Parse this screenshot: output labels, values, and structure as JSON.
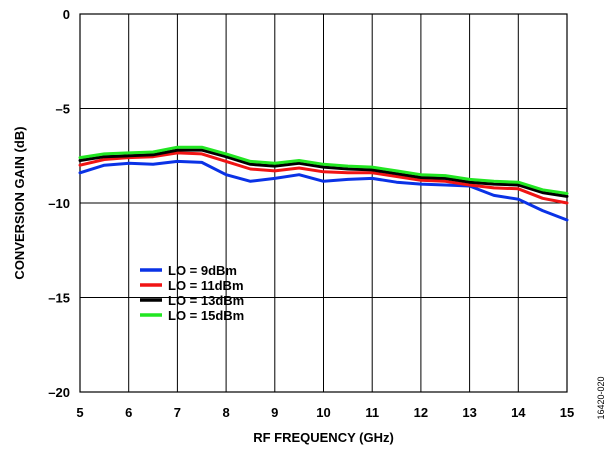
{
  "figure_id": "16420-020",
  "chart_data": {
    "type": "line",
    "xlabel": "RF FREQUENCY (GHz)",
    "ylabel": "CONVERSION GAIN (dB)",
    "xlim": [
      5,
      15
    ],
    "ylim": [
      -20,
      0
    ],
    "x_ticks": [
      5,
      6,
      7,
      8,
      9,
      10,
      11,
      12,
      13,
      14,
      15
    ],
    "y_ticks": [
      0,
      -5,
      -10,
      -15,
      -20
    ],
    "x_tick_labels": [
      "5",
      "6",
      "7",
      "8",
      "9",
      "10",
      "11",
      "12",
      "13",
      "14",
      "15"
    ],
    "y_tick_labels": [
      "0",
      "–5",
      "–10",
      "–15",
      "–20"
    ],
    "grid": true,
    "legend_position": "lower-left",
    "x": [
      5.0,
      5.5,
      6.0,
      6.5,
      7.0,
      7.5,
      8.0,
      8.5,
      9.0,
      9.5,
      10.0,
      10.5,
      11.0,
      11.5,
      12.0,
      12.5,
      13.0,
      13.5,
      14.0,
      14.5,
      15.0
    ],
    "series": [
      {
        "name": "LO = 9dBm",
        "color": "#0a32e6",
        "values": [
          -8.4,
          -8.0,
          -7.9,
          -7.95,
          -7.8,
          -7.85,
          -8.5,
          -8.85,
          -8.7,
          -8.5,
          -8.85,
          -8.75,
          -8.7,
          -8.9,
          -9.0,
          -9.05,
          -9.1,
          -9.6,
          -9.8,
          -10.4,
          -10.9
        ]
      },
      {
        "name": "LO = 11dBm",
        "color": "#f01414",
        "values": [
          -8.0,
          -7.7,
          -7.6,
          -7.55,
          -7.35,
          -7.4,
          -7.8,
          -8.2,
          -8.3,
          -8.15,
          -8.35,
          -8.4,
          -8.4,
          -8.6,
          -8.8,
          -8.85,
          -9.05,
          -9.2,
          -9.25,
          -9.75,
          -10.0
        ]
      },
      {
        "name": "LO = 13dBm",
        "color": "#000000",
        "values": [
          -7.75,
          -7.55,
          -7.5,
          -7.45,
          -7.2,
          -7.2,
          -7.55,
          -7.95,
          -8.05,
          -7.9,
          -8.1,
          -8.2,
          -8.25,
          -8.45,
          -8.65,
          -8.7,
          -8.9,
          -9.0,
          -9.05,
          -9.45,
          -9.65
        ]
      },
      {
        "name": "LO = 15dBm",
        "color": "#22e622",
        "values": [
          -7.6,
          -7.4,
          -7.35,
          -7.3,
          -7.05,
          -7.05,
          -7.4,
          -7.8,
          -7.9,
          -7.75,
          -7.95,
          -8.05,
          -8.1,
          -8.3,
          -8.5,
          -8.55,
          -8.75,
          -8.85,
          -8.9,
          -9.3,
          -9.5
        ]
      }
    ]
  }
}
